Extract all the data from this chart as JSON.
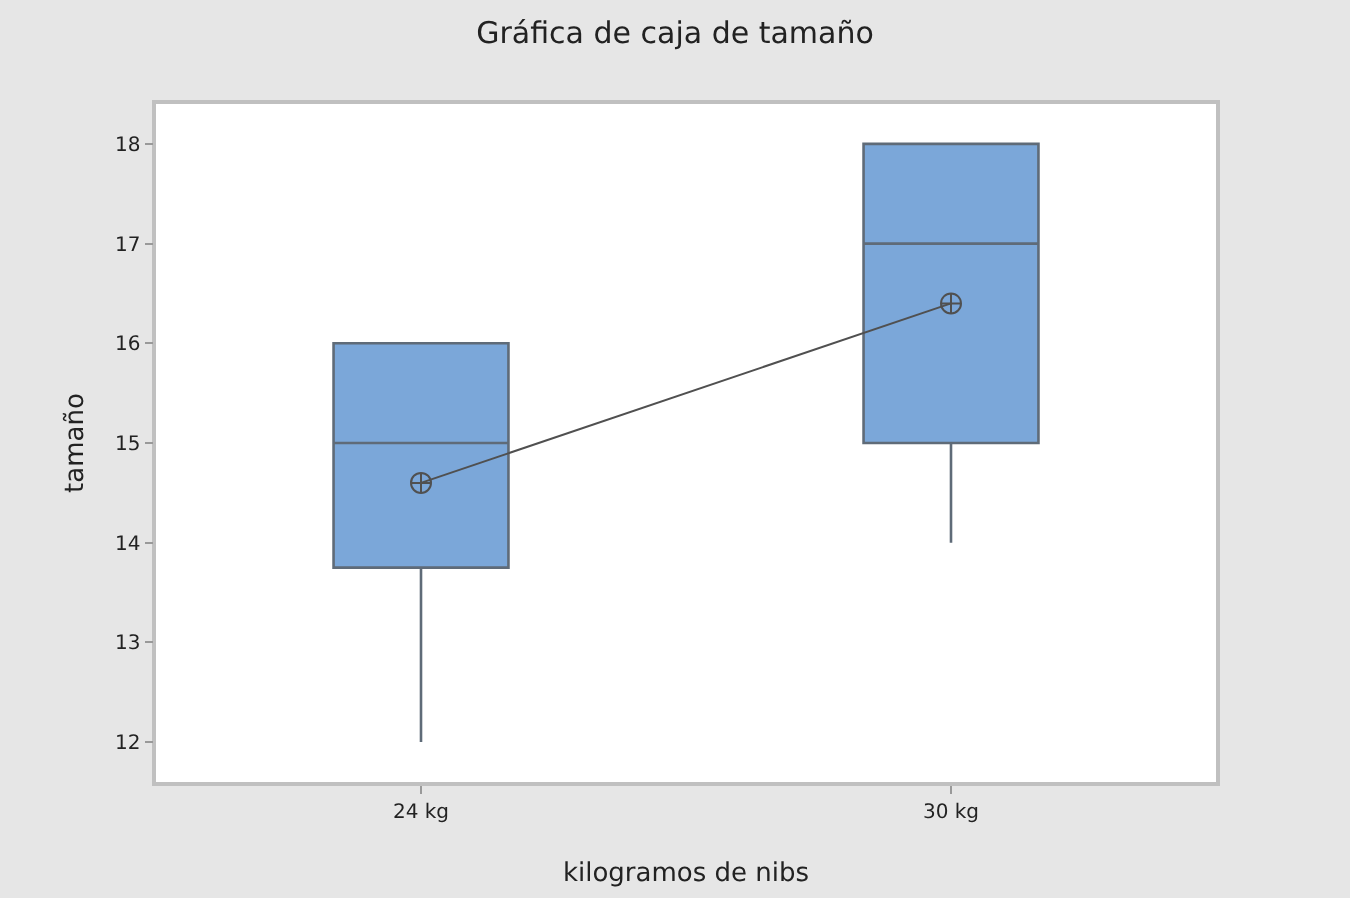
{
  "chart_data": {
    "type": "box",
    "title": "Gráfica de caja de tamaño",
    "xlabel": "kilogramos de nibs",
    "ylabel": "tamaño",
    "categories": [
      "24 kg",
      "30 kg"
    ],
    "boxes": [
      {
        "low": 12,
        "q1": 13.75,
        "median": 15,
        "q3": 16,
        "high": 16
      },
      {
        "low": 14,
        "q1": 15,
        "median": 17,
        "q3": 18,
        "high": 18
      }
    ],
    "color": "#7ba7d9",
    "series": [
      {
        "type": "line",
        "color": "#505050",
        "values": [
          14.6,
          16.4
        ],
        "marker": "cross"
      }
    ],
    "ylim": [
      11.6,
      18.4
    ],
    "yticks": [
      12,
      13,
      14,
      15,
      16,
      17,
      18
    ],
    "grid": false
  }
}
